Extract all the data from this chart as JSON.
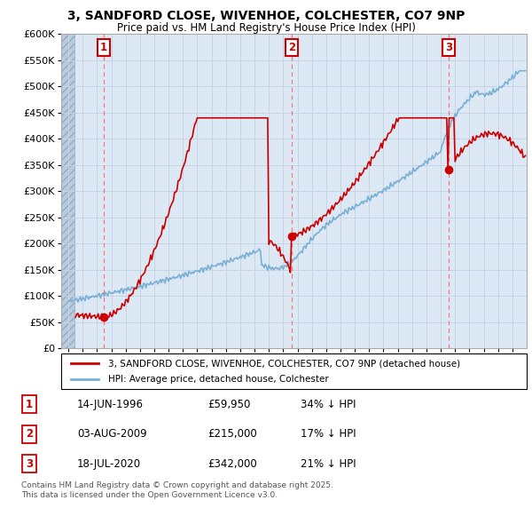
{
  "title": "3, SANDFORD CLOSE, WIVENHOE, COLCHESTER, CO7 9NP",
  "subtitle": "Price paid vs. HM Land Registry's House Price Index (HPI)",
  "legend_label_red": "3, SANDFORD CLOSE, WIVENHOE, COLCHESTER, CO7 9NP (detached house)",
  "legend_label_blue": "HPI: Average price, detached house, Colchester",
  "sale_events": [
    {
      "num": 1,
      "date": "14-JUN-1996",
      "price": 59950,
      "year": 1996.45,
      "label": "34% ↓ HPI"
    },
    {
      "num": 2,
      "date": "03-AUG-2009",
      "price": 215000,
      "year": 2009.59,
      "label": "17% ↓ HPI"
    },
    {
      "num": 3,
      "date": "18-JUL-2020",
      "price": 342000,
      "year": 2020.54,
      "label": "21% ↓ HPI"
    }
  ],
  "copyright_text": "Contains HM Land Registry data © Crown copyright and database right 2025.\nThis data is licensed under the Open Government Licence v3.0.",
  "ylim": [
    0,
    600000
  ],
  "xlim_start": 1993.5,
  "xlim_end": 2026.0,
  "bg_color": "#dce9f5",
  "hatch_color": "#b8cfe0",
  "grid_color": "#c8d8e8",
  "red_line_color": "#cc0000",
  "blue_line_color": "#7aafd4",
  "marker_color": "#cc0000",
  "vline_color": "#ff6666",
  "box_color": "#cc0000"
}
